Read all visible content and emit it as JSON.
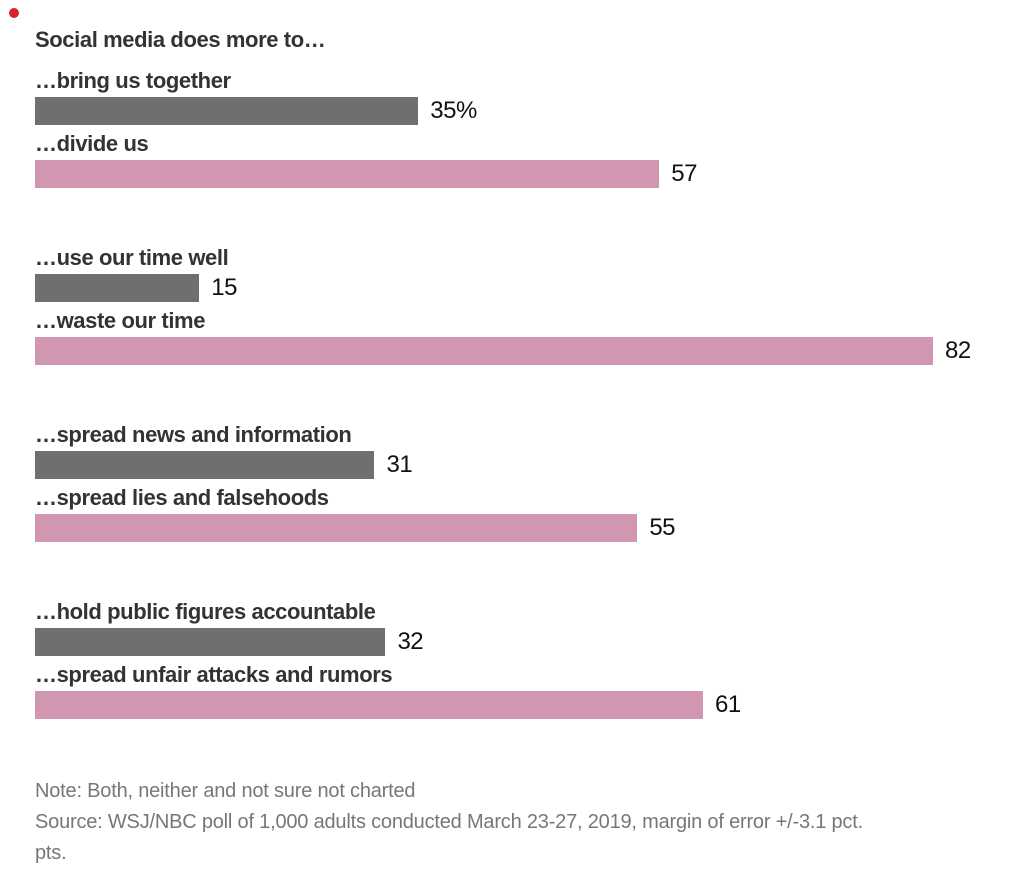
{
  "decorations": {
    "red_dot_color": "#d8232a"
  },
  "chart_data": {
    "type": "bar",
    "orientation": "horizontal",
    "title": "Social media does more to…",
    "xlim": [
      0,
      82
    ],
    "grid": false,
    "legend": "none",
    "colors": {
      "positive_bar": "#6f6f6f",
      "negative_bar": "#d096b2"
    },
    "pairs": [
      {
        "positive": {
          "label": "…bring us together",
          "value": 35,
          "display": "35%"
        },
        "negative": {
          "label": "…divide us",
          "value": 57,
          "display": "57"
        }
      },
      {
        "positive": {
          "label": "…use our time well",
          "value": 15,
          "display": "15"
        },
        "negative": {
          "label": "…waste our time",
          "value": 82,
          "display": "82"
        }
      },
      {
        "positive": {
          "label": "…spread news and information",
          "value": 31,
          "display": "31"
        },
        "negative": {
          "label": "…spread lies and falsehoods",
          "value": 55,
          "display": "55"
        }
      },
      {
        "positive": {
          "label": "…hold public figures accountable",
          "value": 32,
          "display": "32"
        },
        "negative": {
          "label": "…spread unfair attacks and rumors",
          "value": 61,
          "display": "61"
        }
      }
    ]
  },
  "footer": {
    "note": "Note: Both, neither and not sure not charted",
    "source_lines": [
      "Source: WSJ/NBC poll of 1,000 adults conducted March 23-27, 2019, margin of error +/-3.1 pct.",
      "pts."
    ]
  }
}
